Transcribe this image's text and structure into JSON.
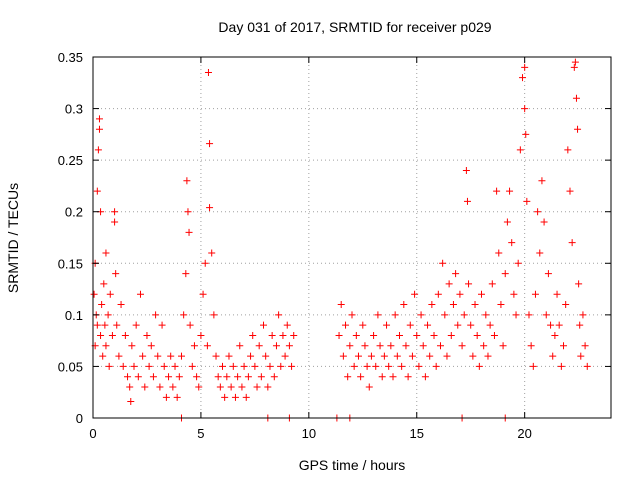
{
  "chart_data": {
    "type": "scatter",
    "title": "Day 031 of 2017, SRMTID for receiver p029",
    "xlabel": "GPS time / hours",
    "ylabel": "SRMTID / TECUs",
    "xlim": [
      0,
      24
    ],
    "ylim": [
      0,
      0.35
    ],
    "xticks": [
      0,
      5,
      10,
      15,
      20
    ],
    "xtick_labels": [
      "0",
      "5",
      "10",
      "15",
      "20"
    ],
    "yticks": [
      0,
      0.05,
      0.1,
      0.15,
      0.2,
      0.25,
      0.3,
      0.35
    ],
    "ytick_labels": [
      "0",
      "0.05",
      "0.1",
      "0.15",
      "0.2",
      "0.25",
      "0.3",
      "0.35"
    ],
    "grid": true,
    "marker": "+",
    "color": "#ff0000",
    "series": [
      {
        "name": "SRMTID",
        "points": [
          [
            0.05,
            0.12
          ],
          [
            0.1,
            0.15
          ],
          [
            0.1,
            0.07
          ],
          [
            0.15,
            0.1
          ],
          [
            0.2,
            0.22
          ],
          [
            0.2,
            0.09
          ],
          [
            0.25,
            0.26
          ],
          [
            0.3,
            0.29
          ],
          [
            0.3,
            0.28
          ],
          [
            0.35,
            0.2
          ],
          [
            0.35,
            0.08
          ],
          [
            0.4,
            0.11
          ],
          [
            0.45,
            0.06
          ],
          [
            0.5,
            0.13
          ],
          [
            0.55,
            0.09
          ],
          [
            0.6,
            0.16
          ],
          [
            0.6,
            0.07
          ],
          [
            0.7,
            0.1
          ],
          [
            0.75,
            0.05
          ],
          [
            0.8,
            0.12
          ],
          [
            0.9,
            0.08
          ],
          [
            1.0,
            0.2
          ],
          [
            1.0,
            0.19
          ],
          [
            1.05,
            0.14
          ],
          [
            1.1,
            0.09
          ],
          [
            1.2,
            0.06
          ],
          [
            1.3,
            0.11
          ],
          [
            1.4,
            0.05
          ],
          [
            1.5,
            0.08
          ],
          [
            1.6,
            0.04
          ],
          [
            1.7,
            0.03
          ],
          [
            1.75,
            0.016
          ],
          [
            1.8,
            0.07
          ],
          [
            1.9,
            0.05
          ],
          [
            2.0,
            0.09
          ],
          [
            2.1,
            0.04
          ],
          [
            2.2,
            0.12
          ],
          [
            2.3,
            0.06
          ],
          [
            2.4,
            0.03
          ],
          [
            2.5,
            0.08
          ],
          [
            2.6,
            0.05
          ],
          [
            2.7,
            0.07
          ],
          [
            2.8,
            0.04
          ],
          [
            2.9,
            0.1
          ],
          [
            3.0,
            0.06
          ],
          [
            3.1,
            0.03
          ],
          [
            3.2,
            0.09
          ],
          [
            3.3,
            0.05
          ],
          [
            3.4,
            0.02
          ],
          [
            3.5,
            0.04
          ],
          [
            3.6,
            0.06
          ],
          [
            3.7,
            0.03
          ],
          [
            3.8,
            0.05
          ],
          [
            3.9,
            0.02
          ],
          [
            4.0,
            0.04
          ],
          [
            4.1,
            0.06
          ],
          [
            4.2,
            0.1
          ],
          [
            4.3,
            0.14
          ],
          [
            4.35,
            0.23
          ],
          [
            4.4,
            0.2
          ],
          [
            4.45,
            0.18
          ],
          [
            4.5,
            0.09
          ],
          [
            4.6,
            0.05
          ],
          [
            4.7,
            0.07
          ],
          [
            4.8,
            0.04
          ],
          [
            4.9,
            0.03
          ],
          [
            5.0,
            0.08
          ],
          [
            5.1,
            0.12
          ],
          [
            5.2,
            0.15
          ],
          [
            5.3,
            0.07
          ],
          [
            5.35,
            0.335
          ],
          [
            5.4,
            0.266
          ],
          [
            5.4,
            0.204
          ],
          [
            5.5,
            0.16
          ],
          [
            5.6,
            0.1
          ],
          [
            5.7,
            0.06
          ],
          [
            5.8,
            0.04
          ],
          [
            5.9,
            0.03
          ],
          [
            6.0,
            0.05
          ],
          [
            6.1,
            0.02
          ],
          [
            6.2,
            0.04
          ],
          [
            6.3,
            0.06
          ],
          [
            6.4,
            0.03
          ],
          [
            6.5,
            0.05
          ],
          [
            6.6,
            0.02
          ],
          [
            6.7,
            0.04
          ],
          [
            6.8,
            0.07
          ],
          [
            6.9,
            0.03
          ],
          [
            7.0,
            0.05
          ],
          [
            7.1,
            0.02
          ],
          [
            7.2,
            0.04
          ],
          [
            7.3,
            0.06
          ],
          [
            7.4,
            0.08
          ],
          [
            7.5,
            0.05
          ],
          [
            7.6,
            0.03
          ],
          [
            7.7,
            0.07
          ],
          [
            7.8,
            0.04
          ],
          [
            7.9,
            0.09
          ],
          [
            8.0,
            0.06
          ],
          [
            8.1,
            0.03
          ],
          [
            8.2,
            0.05
          ],
          [
            8.3,
            0.08
          ],
          [
            8.4,
            0.04
          ],
          [
            8.5,
            0.07
          ],
          [
            8.6,
            0.1
          ],
          [
            8.7,
            0.05
          ],
          [
            8.8,
            0.08
          ],
          [
            8.9,
            0.06
          ],
          [
            9.0,
            0.09
          ],
          [
            9.1,
            0.07
          ],
          [
            9.2,
            0.05
          ],
          [
            9.3,
            0.08
          ],
          [
            11.4,
            0.08
          ],
          [
            11.5,
            0.11
          ],
          [
            11.6,
            0.06
          ],
          [
            11.7,
            0.09
          ],
          [
            11.8,
            0.04
          ],
          [
            11.9,
            0.07
          ],
          [
            12.0,
            0.1
          ],
          [
            12.1,
            0.05
          ],
          [
            12.2,
            0.08
          ],
          [
            12.3,
            0.06
          ],
          [
            12.4,
            0.04
          ],
          [
            12.5,
            0.09
          ],
          [
            12.6,
            0.07
          ],
          [
            12.7,
            0.05
          ],
          [
            12.8,
            0.03
          ],
          [
            12.9,
            0.06
          ],
          [
            13.0,
            0.08
          ],
          [
            13.1,
            0.05
          ],
          [
            13.2,
            0.1
          ],
          [
            13.3,
            0.07
          ],
          [
            13.4,
            0.04
          ],
          [
            13.5,
            0.06
          ],
          [
            13.6,
            0.09
          ],
          [
            13.7,
            0.05
          ],
          [
            13.8,
            0.07
          ],
          [
            13.9,
            0.04
          ],
          [
            14.0,
            0.1
          ],
          [
            14.1,
            0.06
          ],
          [
            14.2,
            0.08
          ],
          [
            14.3,
            0.05
          ],
          [
            14.4,
            0.11
          ],
          [
            14.5,
            0.07
          ],
          [
            14.6,
            0.04
          ],
          [
            14.7,
            0.09
          ],
          [
            14.8,
            0.06
          ],
          [
            14.9,
            0.12
          ],
          [
            15.0,
            0.08
          ],
          [
            15.1,
            0.05
          ],
          [
            15.2,
            0.1
          ],
          [
            15.3,
            0.07
          ],
          [
            15.4,
            0.04
          ],
          [
            15.5,
            0.09
          ],
          [
            15.6,
            0.06
          ],
          [
            15.7,
            0.11
          ],
          [
            15.8,
            0.08
          ],
          [
            15.9,
            0.05
          ],
          [
            16.0,
            0.12
          ],
          [
            16.1,
            0.07
          ],
          [
            16.2,
            0.15
          ],
          [
            16.3,
            0.1
          ],
          [
            16.4,
            0.06
          ],
          [
            16.5,
            0.13
          ],
          [
            16.6,
            0.08
          ],
          [
            16.7,
            0.11
          ],
          [
            16.8,
            0.14
          ],
          [
            16.9,
            0.09
          ],
          [
            17.0,
            0.12
          ],
          [
            17.1,
            0.07
          ],
          [
            17.2,
            0.1
          ],
          [
            17.3,
            0.24
          ],
          [
            17.35,
            0.21
          ],
          [
            17.4,
            0.13
          ],
          [
            17.5,
            0.09
          ],
          [
            17.6,
            0.06
          ],
          [
            17.7,
            0.11
          ],
          [
            17.8,
            0.08
          ],
          [
            17.9,
            0.05
          ],
          [
            18.0,
            0.12
          ],
          [
            18.1,
            0.07
          ],
          [
            18.2,
            0.1
          ],
          [
            18.3,
            0.06
          ],
          [
            18.4,
            0.09
          ],
          [
            18.5,
            0.13
          ],
          [
            18.6,
            0.08
          ],
          [
            18.7,
            0.22
          ],
          [
            18.8,
            0.16
          ],
          [
            18.9,
            0.11
          ],
          [
            19.0,
            0.07
          ],
          [
            19.1,
            0.14
          ],
          [
            19.2,
            0.19
          ],
          [
            19.3,
            0.22
          ],
          [
            19.4,
            0.17
          ],
          [
            19.5,
            0.12
          ],
          [
            19.6,
            0.1
          ],
          [
            19.7,
            0.15
          ],
          [
            19.8,
            0.26
          ],
          [
            19.9,
            0.33
          ],
          [
            20.0,
            0.34
          ],
          [
            20.0,
            0.3
          ],
          [
            20.05,
            0.275
          ],
          [
            20.1,
            0.21
          ],
          [
            20.2,
            0.1
          ],
          [
            20.3,
            0.07
          ],
          [
            20.4,
            0.05
          ],
          [
            20.5,
            0.12
          ],
          [
            20.6,
            0.2
          ],
          [
            20.7,
            0.16
          ],
          [
            20.8,
            0.23
          ],
          [
            20.9,
            0.19
          ],
          [
            21.0,
            0.1
          ],
          [
            21.1,
            0.14
          ],
          [
            21.2,
            0.09
          ],
          [
            21.3,
            0.06
          ],
          [
            21.4,
            0.08
          ],
          [
            21.5,
            0.12
          ],
          [
            21.6,
            0.09
          ],
          [
            21.7,
            0.05
          ],
          [
            21.8,
            0.07
          ],
          [
            21.9,
            0.11
          ],
          [
            22.0,
            0.26
          ],
          [
            22.1,
            0.22
          ],
          [
            22.2,
            0.17
          ],
          [
            22.3,
            0.34
          ],
          [
            22.35,
            0.345
          ],
          [
            22.4,
            0.31
          ],
          [
            22.45,
            0.28
          ],
          [
            22.5,
            0.13
          ],
          [
            22.55,
            0.09
          ],
          [
            22.6,
            0.06
          ],
          [
            22.7,
            0.1
          ],
          [
            22.8,
            0.07
          ],
          [
            22.9,
            0.05
          ],
          [
            4.1,
            0.0
          ],
          [
            8.1,
            0.0
          ],
          [
            9.1,
            0.0
          ],
          [
            11.3,
            0.0
          ],
          [
            11.9,
            0.0
          ],
          [
            17.1,
            0.0
          ],
          [
            19.1,
            0.0
          ]
        ]
      }
    ]
  }
}
